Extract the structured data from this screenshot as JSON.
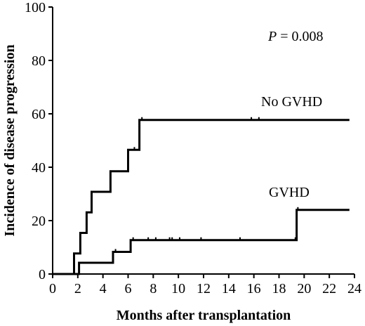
{
  "chart_data": {
    "type": "line",
    "xlabel": "Months after transplantation",
    "ylabel": "Incidence of disease progression",
    "xlim": [
      0,
      24
    ],
    "ylim": [
      0,
      100
    ],
    "x_ticks": [
      0,
      2,
      4,
      6,
      8,
      10,
      12,
      14,
      16,
      18,
      20,
      22,
      24
    ],
    "y_ticks": [
      0,
      20,
      40,
      60,
      80,
      100
    ],
    "grid": false,
    "annotation": {
      "p_symbol": "P",
      "p_text": " = 0.008"
    },
    "series": [
      {
        "name": "No GVHD",
        "step": true,
        "points": [
          [
            0,
            0
          ],
          [
            1.7,
            0
          ],
          [
            1.7,
            7.7
          ],
          [
            2.2,
            7.7
          ],
          [
            2.2,
            15.4
          ],
          [
            2.7,
            15.4
          ],
          [
            2.7,
            23.1
          ],
          [
            3.1,
            23.1
          ],
          [
            3.1,
            30.8
          ],
          [
            4.6,
            30.8
          ],
          [
            4.6,
            38.5
          ],
          [
            6.0,
            38.5
          ],
          [
            6.0,
            46.5
          ],
          [
            6.9,
            46.5
          ],
          [
            6.9,
            57.7
          ],
          [
            23.6,
            57.7
          ]
        ],
        "censor_x": [
          6.5,
          7.1,
          15.8,
          16.4
        ],
        "censor_y": [
          46.5,
          57.7,
          57.7,
          57.7
        ]
      },
      {
        "name": "GVHD",
        "step": true,
        "points": [
          [
            0,
            0
          ],
          [
            2.1,
            0
          ],
          [
            2.1,
            4.2
          ],
          [
            4.8,
            4.2
          ],
          [
            4.8,
            8.3
          ],
          [
            6.2,
            8.3
          ],
          [
            6.2,
            12.7
          ],
          [
            19.4,
            12.7
          ],
          [
            19.4,
            24.0
          ],
          [
            23.6,
            24.0
          ]
        ],
        "censor_x": [
          5.0,
          6.4,
          7.6,
          8.2,
          9.3,
          9.5,
          10.1,
          11.8,
          14.9,
          19.3,
          19.5
        ],
        "censor_y": [
          8.3,
          12.7,
          12.7,
          12.7,
          12.7,
          12.7,
          12.7,
          12.7,
          12.7,
          12.7,
          24.0
        ]
      }
    ]
  }
}
